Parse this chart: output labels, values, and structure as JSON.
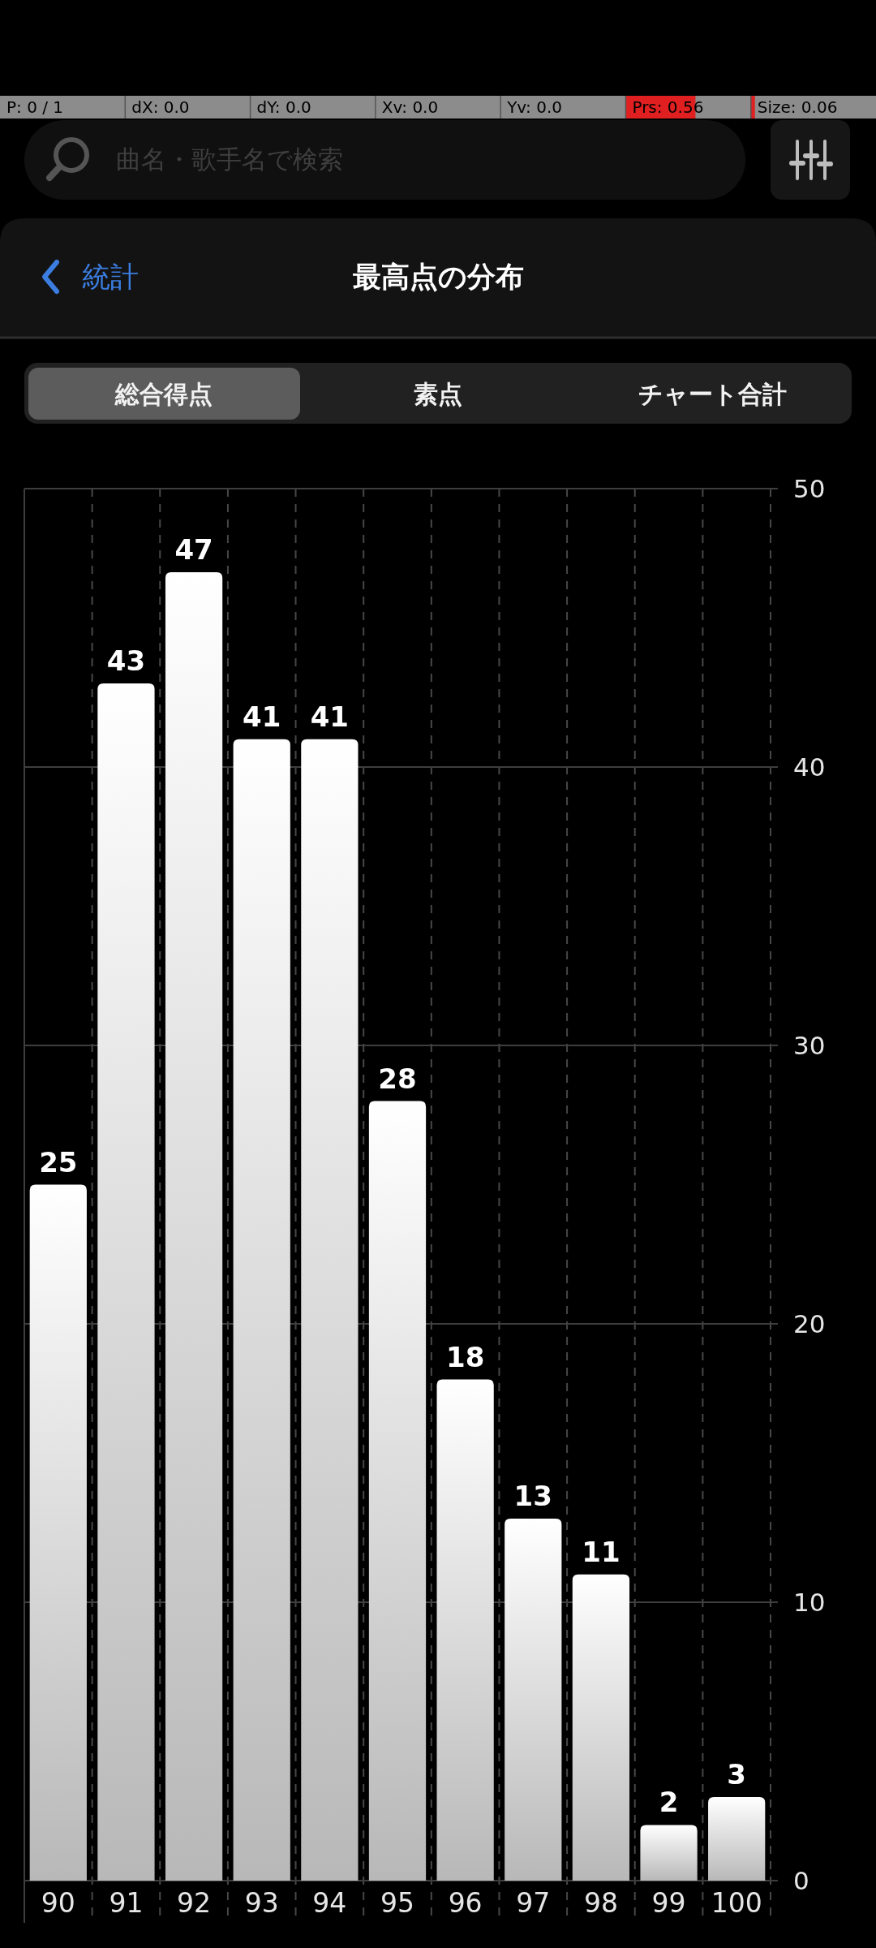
{
  "chart_data": {
    "type": "bar",
    "title": "最高点の分布",
    "categories": [
      "90",
      "91",
      "92",
      "93",
      "94",
      "95",
      "96",
      "97",
      "98",
      "99",
      "100"
    ],
    "values": [
      25,
      43,
      47,
      41,
      41,
      28,
      18,
      13,
      11,
      2,
      3
    ],
    "color": "#dcdcdc",
    "ylim": [
      0,
      50
    ],
    "yticks": [
      0,
      10,
      20,
      30,
      40,
      50
    ],
    "grid": true,
    "data_labels": true,
    "annotations": [
      "P: 0 / 1",
      "dX: 0.0",
      "dY: 0.0",
      "Xv: 0.0",
      "Yv: 0.0",
      "Prs: 0.56",
      "Size: 0.06",
      "曲名・歌手名で検索",
      "統計",
      "総合得点",
      "素点",
      "チャート合計"
    ]
  }
}
